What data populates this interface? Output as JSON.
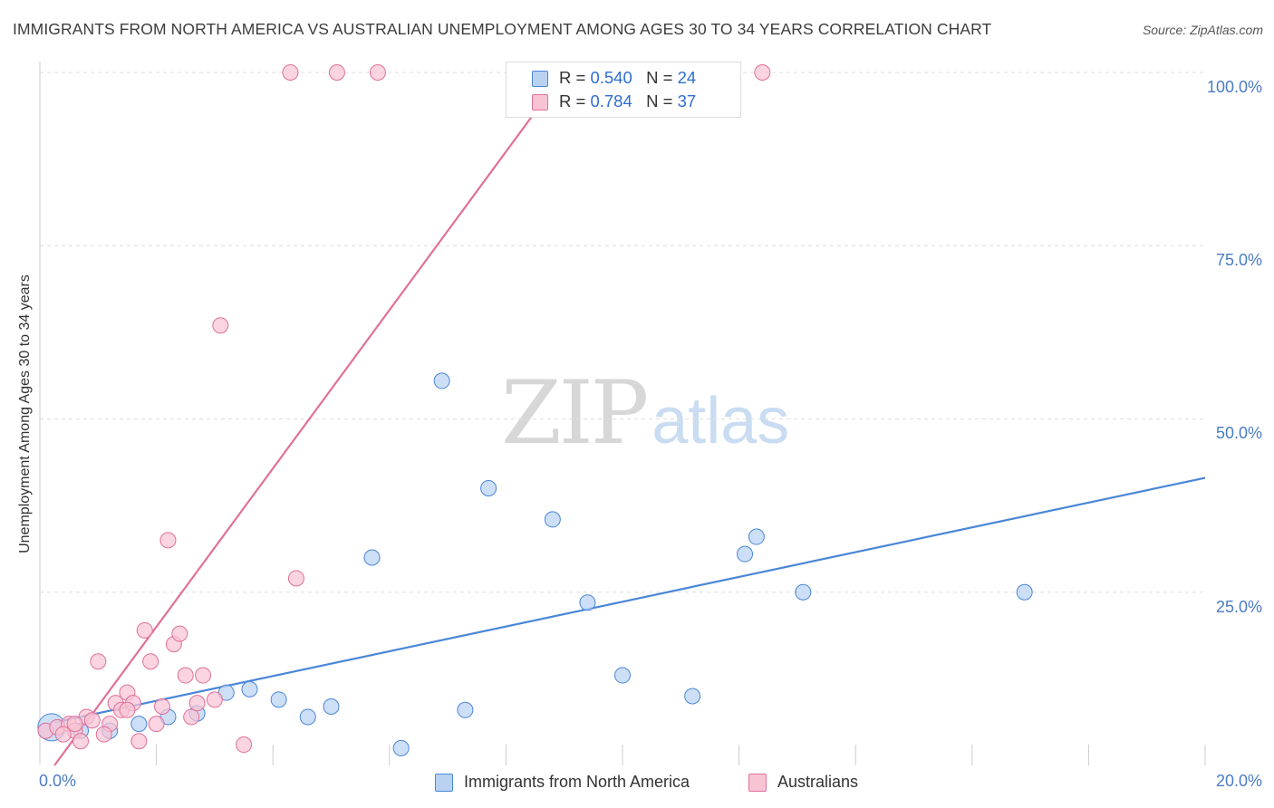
{
  "header": {
    "title": "IMMIGRANTS FROM NORTH AMERICA VS AUSTRALIAN UNEMPLOYMENT AMONG AGES 30 TO 34 YEARS CORRELATION CHART",
    "source": "Source: ZipAtlas.com"
  },
  "watermark": {
    "zip": "ZIP",
    "atlas": "atlas"
  },
  "legend": {
    "r_label": "R =",
    "n_label": "N =",
    "series": [
      {
        "name": "Immigrants from North America",
        "r": "0.540",
        "n": "24",
        "color": "#4a86d8",
        "fill": "#bad2f2"
      },
      {
        "name": "Australians",
        "r": "0.784",
        "n": "37",
        "color": "#e0709a",
        "fill": "#f8c4d4"
      }
    ]
  },
  "chart_data": {
    "type": "scatter",
    "title": "IMMIGRANTS FROM NORTH AMERICA VS AUSTRALIAN UNEMPLOYMENT AMONG AGES 30 TO 34 YEARS CORRELATION CHART",
    "xlabel": "",
    "ylabel": "Unemployment Among Ages 30 to 34 years",
    "xlim": [
      0,
      20
    ],
    "ylim": [
      0,
      100
    ],
    "x_tick_labels": [
      "0.0%",
      "20.0%"
    ],
    "y_tick_labels": [
      "100.0%",
      "75.0%",
      "50.0%",
      "25.0%"
    ],
    "y_ticks": [
      100,
      75,
      50,
      25
    ],
    "grid": true,
    "legend_position": "top-center",
    "series": [
      {
        "name": "Immigrants from North America",
        "color": "#4a86d8",
        "fill": "#bad2f2",
        "trend": {
          "x": [
            0.25,
            20
          ],
          "y": [
            6.2,
            41.5
          ]
        },
        "points": [
          {
            "x": 0.2,
            "y": 5.5,
            "large": true
          },
          {
            "x": 0.7,
            "y": 5.0
          },
          {
            "x": 1.2,
            "y": 5.0
          },
          {
            "x": 1.7,
            "y": 6.0
          },
          {
            "x": 2.2,
            "y": 7.0
          },
          {
            "x": 2.7,
            "y": 7.5
          },
          {
            "x": 3.2,
            "y": 10.5
          },
          {
            "x": 3.6,
            "y": 11.0
          },
          {
            "x": 4.1,
            "y": 9.5
          },
          {
            "x": 4.6,
            "y": 7.0
          },
          {
            "x": 5.0,
            "y": 8.5
          },
          {
            "x": 5.7,
            "y": 30.0
          },
          {
            "x": 6.2,
            "y": 2.5
          },
          {
            "x": 6.9,
            "y": 55.5
          },
          {
            "x": 7.3,
            "y": 8.0
          },
          {
            "x": 7.7,
            "y": 40.0
          },
          {
            "x": 8.8,
            "y": 35.5
          },
          {
            "x": 9.4,
            "y": 23.5
          },
          {
            "x": 10.0,
            "y": 13.0
          },
          {
            "x": 11.2,
            "y": 10.0
          },
          {
            "x": 12.1,
            "y": 30.5
          },
          {
            "x": 12.3,
            "y": 33.0
          },
          {
            "x": 13.1,
            "y": 25.0
          },
          {
            "x": 16.9,
            "y": 25.0
          }
        ]
      },
      {
        "name": "Australians",
        "color": "#e0709a",
        "fill": "#f8c4d4",
        "trend": {
          "x": [
            0.25,
            9.0
          ],
          "y": [
            0.0,
            100.0
          ]
        },
        "points": [
          {
            "x": 0.1,
            "y": 5.0
          },
          {
            "x": 0.3,
            "y": 5.5
          },
          {
            "x": 0.5,
            "y": 6.0
          },
          {
            "x": 0.6,
            "y": 5.0
          },
          {
            "x": 0.7,
            "y": 3.5
          },
          {
            "x": 0.8,
            "y": 7.0
          },
          {
            "x": 0.9,
            "y": 6.5
          },
          {
            "x": 1.0,
            "y": 15.0
          },
          {
            "x": 1.2,
            "y": 6.0
          },
          {
            "x": 1.3,
            "y": 9.0
          },
          {
            "x": 1.4,
            "y": 8.0
          },
          {
            "x": 1.5,
            "y": 10.5
          },
          {
            "x": 1.6,
            "y": 9.0
          },
          {
            "x": 1.7,
            "y": 3.5
          },
          {
            "x": 1.8,
            "y": 19.5
          },
          {
            "x": 1.9,
            "y": 15.0
          },
          {
            "x": 2.0,
            "y": 6.0
          },
          {
            "x": 2.1,
            "y": 8.5
          },
          {
            "x": 2.2,
            "y": 32.5
          },
          {
            "x": 2.3,
            "y": 17.5
          },
          {
            "x": 2.4,
            "y": 19.0
          },
          {
            "x": 2.5,
            "y": 13.0
          },
          {
            "x": 2.6,
            "y": 7.0
          },
          {
            "x": 2.7,
            "y": 9.0
          },
          {
            "x": 2.8,
            "y": 13.0
          },
          {
            "x": 3.0,
            "y": 9.5
          },
          {
            "x": 3.1,
            "y": 63.5
          },
          {
            "x": 3.5,
            "y": 3.0
          },
          {
            "x": 4.4,
            "y": 27.0
          },
          {
            "x": 4.3,
            "y": 100.0
          },
          {
            "x": 5.1,
            "y": 100.0
          },
          {
            "x": 5.8,
            "y": 100.0
          },
          {
            "x": 12.4,
            "y": 100.0
          },
          {
            "x": 0.4,
            "y": 4.5
          },
          {
            "x": 0.6,
            "y": 6.0
          },
          {
            "x": 1.1,
            "y": 4.5
          },
          {
            "x": 1.5,
            "y": 8.0
          }
        ]
      }
    ]
  }
}
